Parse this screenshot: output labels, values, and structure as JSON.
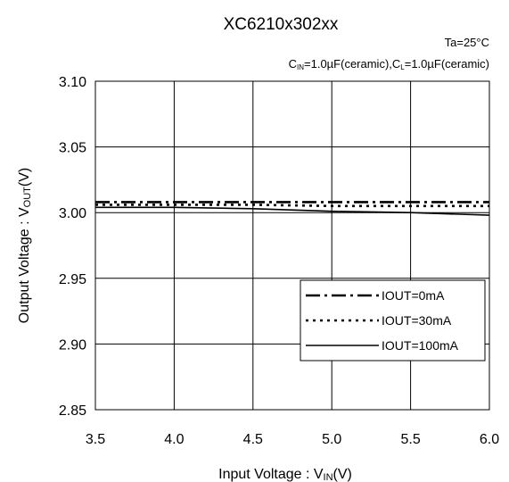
{
  "chart_data": {
    "type": "line",
    "title": "XC6210x302xx",
    "condition_ta": "Ta=25°C",
    "condition_caps": {
      "cin_main": "C",
      "cin_sub": "IN",
      "cin_rest": "=1.0µF(ceramic),",
      "cl_main": "C",
      "cl_sub": "L",
      "cl_rest": "=1.0µF(ceramic)"
    },
    "xlabel": {
      "main": "Input Voltage : V",
      "sub": "IN",
      "rest": "(V)"
    },
    "ylabel": {
      "main": "Output Voltage : V",
      "sub": "OUT",
      "rest": "(V)"
    },
    "xlim": [
      3.5,
      6.0
    ],
    "ylim": [
      2.85,
      3.1
    ],
    "xticks": [
      "3.5",
      "4.0",
      "4.5",
      "5.0",
      "5.5",
      "6.0"
    ],
    "yticks": [
      "3.10",
      "3.05",
      "3.00",
      "2.95",
      "2.90",
      "2.85"
    ],
    "grid": true,
    "legend_position": "bottom-right",
    "x": [
      3.5,
      4.0,
      4.5,
      5.0,
      5.5,
      6.0
    ],
    "series": [
      {
        "name": "IOUT=0mA",
        "style": "dash-dot",
        "values": [
          3.008,
          3.008,
          3.008,
          3.008,
          3.008,
          3.008
        ]
      },
      {
        "name": "IOUT=30mA",
        "style": "dotted",
        "values": [
          3.006,
          3.006,
          3.006,
          3.005,
          3.005,
          3.005
        ]
      },
      {
        "name": "IOUT=100mA",
        "style": "solid",
        "values": [
          3.004,
          3.004,
          3.003,
          3.001,
          3.0,
          2.998
        ]
      }
    ],
    "line_color": "#000000",
    "grid_color": "#000000"
  }
}
